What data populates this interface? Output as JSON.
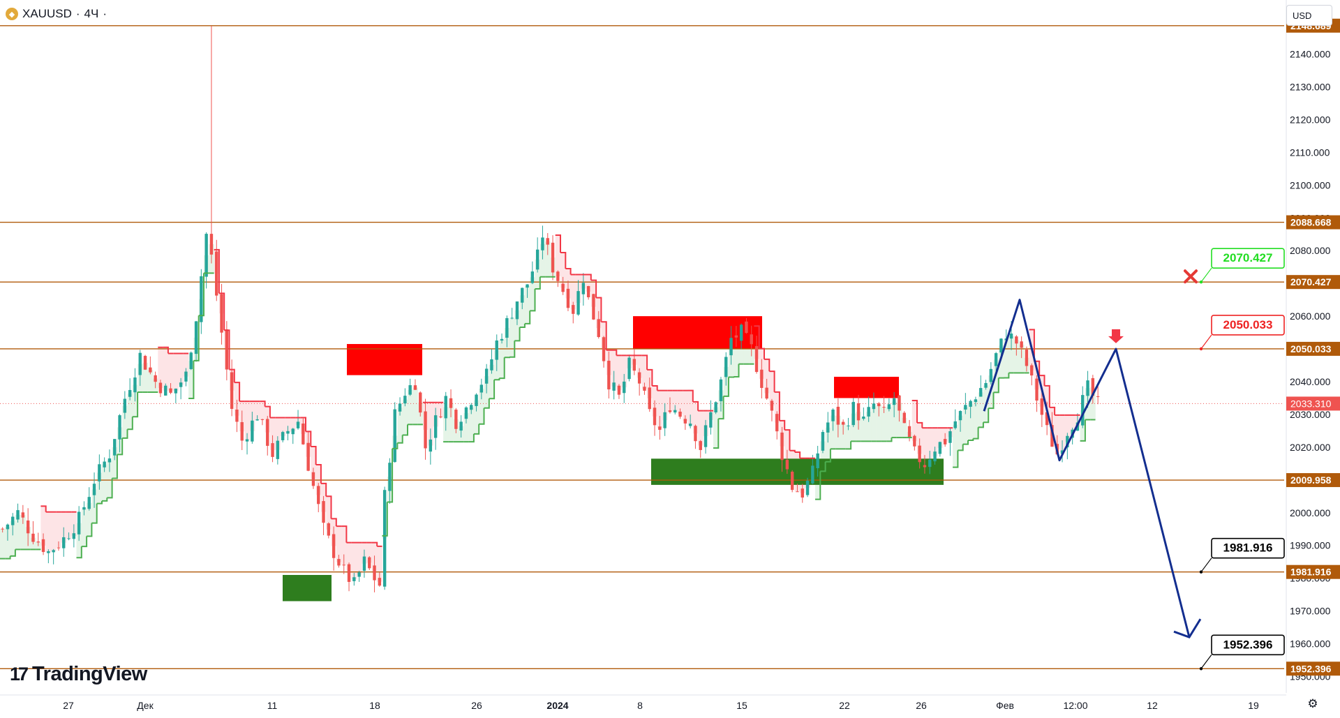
{
  "header": {
    "symbol": "XAUUSD",
    "sep1": "·",
    "timeframe": "4Ч",
    "sep2": "·",
    "currency": "USD"
  },
  "brand": {
    "logo_mark": "17",
    "logo_text": "TradingView"
  },
  "colors": {
    "level_line": "#b05a0a",
    "bull": "#26a69a",
    "bear": "#ef5350",
    "trail_red": "#f23645",
    "trail_green": "#4caf50",
    "fill_red": "#fde4e6",
    "fill_green": "#e5f4e7",
    "supply_zone": "#ff0000",
    "demand_zone": "#2e7d1e",
    "projection": "#132e8f",
    "price_tag": "#b05a0a",
    "target_green": "#22dd22",
    "target_red": "#ee2222",
    "current_price": "#ef5350"
  },
  "chart_data": {
    "type": "candlestick",
    "symbol": "XAUUSD",
    "interval": "4Ч",
    "y_range": [
      1945,
      2148
    ],
    "y_ticks": [
      "2140.000",
      "2130.000",
      "2120.000",
      "2110.000",
      "2100.000",
      "2090.000",
      "2080.000",
      "2070.000",
      "2060.000",
      "2050.000",
      "2040.000",
      "2030.000",
      "2020.000",
      "2010.000",
      "2000.000",
      "1990.000",
      "1980.000",
      "1970.000",
      "1960.000",
      "1950.000"
    ],
    "x_labels": [
      "27",
      "Дек",
      "11",
      "18",
      "26",
      "2024",
      "8",
      "15",
      "22",
      "26",
      "Фев",
      "12:00",
      "12",
      "19"
    ],
    "top_level_label": "2148.689",
    "horizontal_levels": [
      {
        "value": 2148.689,
        "label": "2148.689"
      },
      {
        "value": 2088.668,
        "label": "2088.668"
      },
      {
        "value": 2070.427,
        "label": "2070.427"
      },
      {
        "value": 2050.033,
        "label": "2050.033"
      },
      {
        "value": 2009.958,
        "label": "2009.958"
      },
      {
        "value": 1981.916,
        "label": "1981.916"
      },
      {
        "value": 1952.396,
        "label": "1952.396"
      }
    ],
    "current_price": {
      "value": 2033.31,
      "label": "2033.310"
    },
    "targets": [
      {
        "value": 2070.427,
        "label": "2070.427",
        "color": "green",
        "marker": "cross"
      },
      {
        "value": 2050.033,
        "label": "2050.033",
        "color": "red",
        "marker": "arrow-down"
      },
      {
        "value": 1981.916,
        "label": "1981.916",
        "color": "black"
      },
      {
        "value": 1952.396,
        "label": "1952.396",
        "color": "black"
      }
    ],
    "supply_zones": [
      {
        "from": "Dec 15",
        "to": "Dec 21",
        "low": 2042,
        "high": 2051.5
      },
      {
        "from": "Jan 8",
        "to": "Jan 17",
        "low": 2050,
        "high": 2060
      },
      {
        "from": "Jan 22",
        "to": "Jan 25",
        "low": 2035,
        "high": 2041.5
      }
    ],
    "demand_zones": [
      {
        "from": "Dec 12",
        "to": "Dec 14",
        "low": 1973,
        "high": 1981
      },
      {
        "from": "Jan 9",
        "to": "Jan 29",
        "low": 2008.5,
        "high": 2016.5
      }
    ],
    "projection_path": [
      {
        "t": "Feb 1",
        "price": 2031
      },
      {
        "t": "Feb 4",
        "price": 2065
      },
      {
        "t": "Feb 7",
        "price": 2016
      },
      {
        "t": "Feb 10",
        "price": 2050
      },
      {
        "t": "Feb 17",
        "price": 1962
      }
    ],
    "price_path": [
      [
        0,
        1995
      ],
      [
        3,
        2000
      ],
      [
        6,
        1993
      ],
      [
        9,
        1988
      ],
      [
        12,
        1992
      ],
      [
        15,
        1998
      ],
      [
        18,
        2010
      ],
      [
        21,
        2018
      ],
      [
        24,
        2035
      ],
      [
        27,
        2048
      ],
      [
        30,
        2040
      ],
      [
        33,
        2036
      ],
      [
        36,
        2042
      ],
      [
        38,
        2060
      ],
      [
        40,
        2085
      ],
      [
        41,
        2078
      ],
      [
        43,
        2055
      ],
      [
        45,
        2032
      ],
      [
        47,
        2022
      ],
      [
        50,
        2030
      ],
      [
        53,
        2018
      ],
      [
        56,
        2025
      ],
      [
        58,
        2028
      ],
      [
        61,
        2008
      ],
      [
        63,
        1995
      ],
      [
        65,
        1988
      ],
      [
        67,
        1982
      ],
      [
        69,
        1978
      ],
      [
        71,
        1985
      ],
      [
        73,
        1980
      ],
      [
        74,
        1978
      ],
      [
        75,
        2005
      ],
      [
        77,
        2030
      ],
      [
        79,
        2037
      ],
      [
        81,
        2040
      ],
      [
        83,
        2020
      ],
      [
        85,
        2028
      ],
      [
        87,
        2035
      ],
      [
        89,
        2028
      ],
      [
        91,
        2032
      ],
      [
        93,
        2038
      ],
      [
        95,
        2042
      ],
      [
        97,
        2052
      ],
      [
        99,
        2058
      ],
      [
        101,
        2065
      ],
      [
        103,
        2070
      ],
      [
        105,
        2078
      ],
      [
        106,
        2085
      ],
      [
        108,
        2075
      ],
      [
        110,
        2068
      ],
      [
        112,
        2062
      ],
      [
        114,
        2072
      ],
      [
        115,
        2065
      ],
      [
        117,
        2055
      ],
      [
        119,
        2040
      ],
      [
        121,
        2035
      ],
      [
        123,
        2045
      ],
      [
        125,
        2040
      ],
      [
        127,
        2030
      ],
      [
        129,
        2025
      ],
      [
        131,
        2033
      ],
      [
        133,
        2030
      ],
      [
        135,
        2028
      ],
      [
        137,
        2020
      ],
      [
        139,
        2030
      ],
      [
        141,
        2040
      ],
      [
        143,
        2053
      ],
      [
        145,
        2055
      ],
      [
        147,
        2050
      ],
      [
        149,
        2040
      ],
      [
        151,
        2030
      ],
      [
        153,
        2018
      ],
      [
        155,
        2008
      ],
      [
        157,
        2006
      ],
      [
        159,
        2012
      ],
      [
        161,
        2025
      ],
      [
        163,
        2030
      ],
      [
        165,
        2026
      ],
      [
        167,
        2032
      ],
      [
        169,
        2028
      ],
      [
        171,
        2033
      ],
      [
        173,
        2030
      ],
      [
        175,
        2035
      ],
      [
        177,
        2025
      ],
      [
        179,
        2018
      ],
      [
        181,
        2015
      ],
      [
        183,
        2020
      ],
      [
        185,
        2022
      ],
      [
        187,
        2028
      ],
      [
        189,
        2032
      ],
      [
        191,
        2036
      ],
      [
        193,
        2040
      ],
      [
        195,
        2048
      ],
      [
        197,
        2055
      ],
      [
        199,
        2052
      ],
      [
        201,
        2045
      ],
      [
        203,
        2035
      ],
      [
        205,
        2025
      ],
      [
        207,
        2018
      ],
      [
        209,
        2025
      ],
      [
        211,
        2030
      ],
      [
        213,
        2038
      ],
      [
        215,
        2033
      ]
    ]
  }
}
